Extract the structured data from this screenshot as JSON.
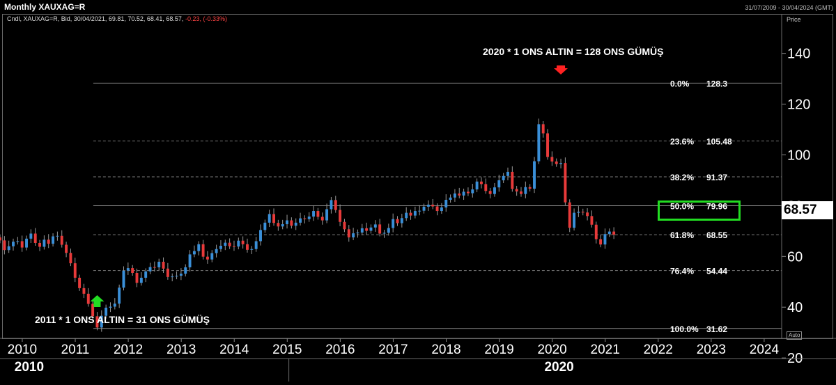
{
  "header": {
    "title": "Monthly XAUXAG=R",
    "date_range": "31/07/2009 - 30/04/2024 (GMT)",
    "legend_prefix": "Cndl, XAUXAG=R, Bid, 30/04/2021, 69.81, 70.52, 68.41, 68.57,",
    "legend_change": "-0.23, (-0.33%)",
    "price_axis_label": "Price",
    "auto_label": "Auto"
  },
  "annotations": {
    "top": "2020 * 1 ONS ALTIN = 128 ONS GÜMÜŞ",
    "bottom": "2011 * 1 ONS ALTIN = 31 ONS GÜMÜŞ"
  },
  "last_price": "68.57",
  "colors": {
    "background": "#000000",
    "up": "#3a8fd8",
    "down": "#e83a3a",
    "highlight": "#22dd22",
    "arrow_top": "#ff2222",
    "arrow_bottom": "#22dd22"
  },
  "chart_data": {
    "type": "candlestick",
    "title": "Monthly XAUXAG=R",
    "ylabel": "Price",
    "ylim": [
      14,
      155
    ],
    "yticks": [
      20,
      40,
      60,
      80,
      100,
      120,
      140
    ],
    "xlim": [
      2009.58,
      2024.33
    ],
    "xticks": [
      "2010",
      "2011",
      "2012",
      "2013",
      "2014",
      "2015",
      "2016",
      "2017",
      "2018",
      "2019",
      "2020",
      "2021",
      "2022",
      "2023",
      "2024"
    ],
    "decade_labels": [
      "2010",
      "2020"
    ],
    "fibonacci": [
      {
        "level": "0.0%",
        "value": 128.3
      },
      {
        "level": "23.6%",
        "value": 105.48
      },
      {
        "level": "38.2%",
        "value": 91.37
      },
      {
        "level": "50.0%",
        "value": 79.96
      },
      {
        "level": "61.8%",
        "value": 68.55
      },
      {
        "level": "76.4%",
        "value": 54.44
      },
      {
        "level": "100.0%",
        "value": 31.62
      }
    ],
    "closes": [
      66.3,
      62.5,
      64.0,
      65.8,
      66.0,
      63.5,
      67.0,
      69.0,
      65.3,
      63.8,
      66.6,
      65.0,
      67.9,
      68.1,
      64.6,
      61.4,
      57.3,
      51.6,
      47.5,
      45.3,
      41.3,
      36.4,
      32.0,
      36.6,
      39.8,
      40.2,
      41.4,
      47.7,
      54.4,
      55.4,
      53.5,
      49.6,
      51.6,
      54.1,
      55.8,
      55.7,
      57.9,
      55.2,
      51.9,
      52.1,
      52.4,
      53.2,
      55.7,
      60.8,
      62.1,
      64.8,
      59.9,
      58.8,
      61.3,
      62.9,
      64.2,
      65.4,
      64.0,
      63.9,
      66.2,
      64.8,
      62.6,
      62.9,
      66.0,
      70.4,
      73.3,
      76.7,
      73.2,
      71.8,
      72.7,
      74.2,
      72.1,
      73.3,
      75.0,
      74.7,
      75.7,
      77.9,
      75.6,
      74.2,
      78.6,
      82.2,
      78.3,
      73.6,
      70.7,
      67.5,
      69.1,
      69.4,
      71.1,
      70.1,
      71.4,
      72.6,
      69.0,
      69.3,
      71.2,
      74.7,
      73.1,
      75.1,
      77.2,
      76.1,
      77.9,
      78.0,
      79.6,
      80.4,
      79.7,
      77.9,
      79.3,
      82.3,
      83.2,
      84.8,
      84.0,
      85.5,
      84.9,
      86.4,
      89.5,
      88.5,
      85.8,
      84.6,
      87.2,
      90.0,
      91.7,
      93.3,
      86.6,
      85.6,
      84.6,
      87.3,
      86.7,
      97.5,
      112.1,
      108.5,
      99.2,
      97.4,
      96.4,
      96.8,
      81.3,
      71.3,
      77.2,
      77.6,
      77.3,
      75.9,
      72.5,
      66.8,
      64.7,
      68.8,
      69.8,
      68.57
    ]
  }
}
